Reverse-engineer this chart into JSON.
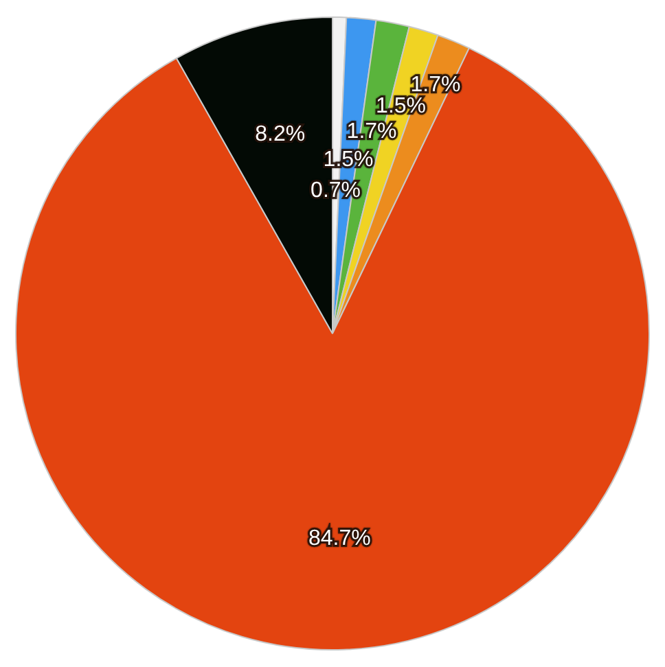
{
  "chart_data": {
    "type": "pie",
    "categories": [
      null,
      null,
      null,
      null,
      null,
      null,
      null
    ],
    "values": [
      0.7,
      1.5,
      1.7,
      1.5,
      1.7,
      84.7,
      8.2
    ],
    "value_labels": [
      "0.7%",
      "1.5%",
      "1.7%",
      "1.5%",
      "1.7%",
      "84.7%",
      "8.2%"
    ],
    "colors": [
      "#f2f2f2",
      "#3d97f0",
      "#5ab43c",
      "#f0d323",
      "#ec8c1e",
      "#e34410",
      "#030a05"
    ],
    "legend": false
  }
}
